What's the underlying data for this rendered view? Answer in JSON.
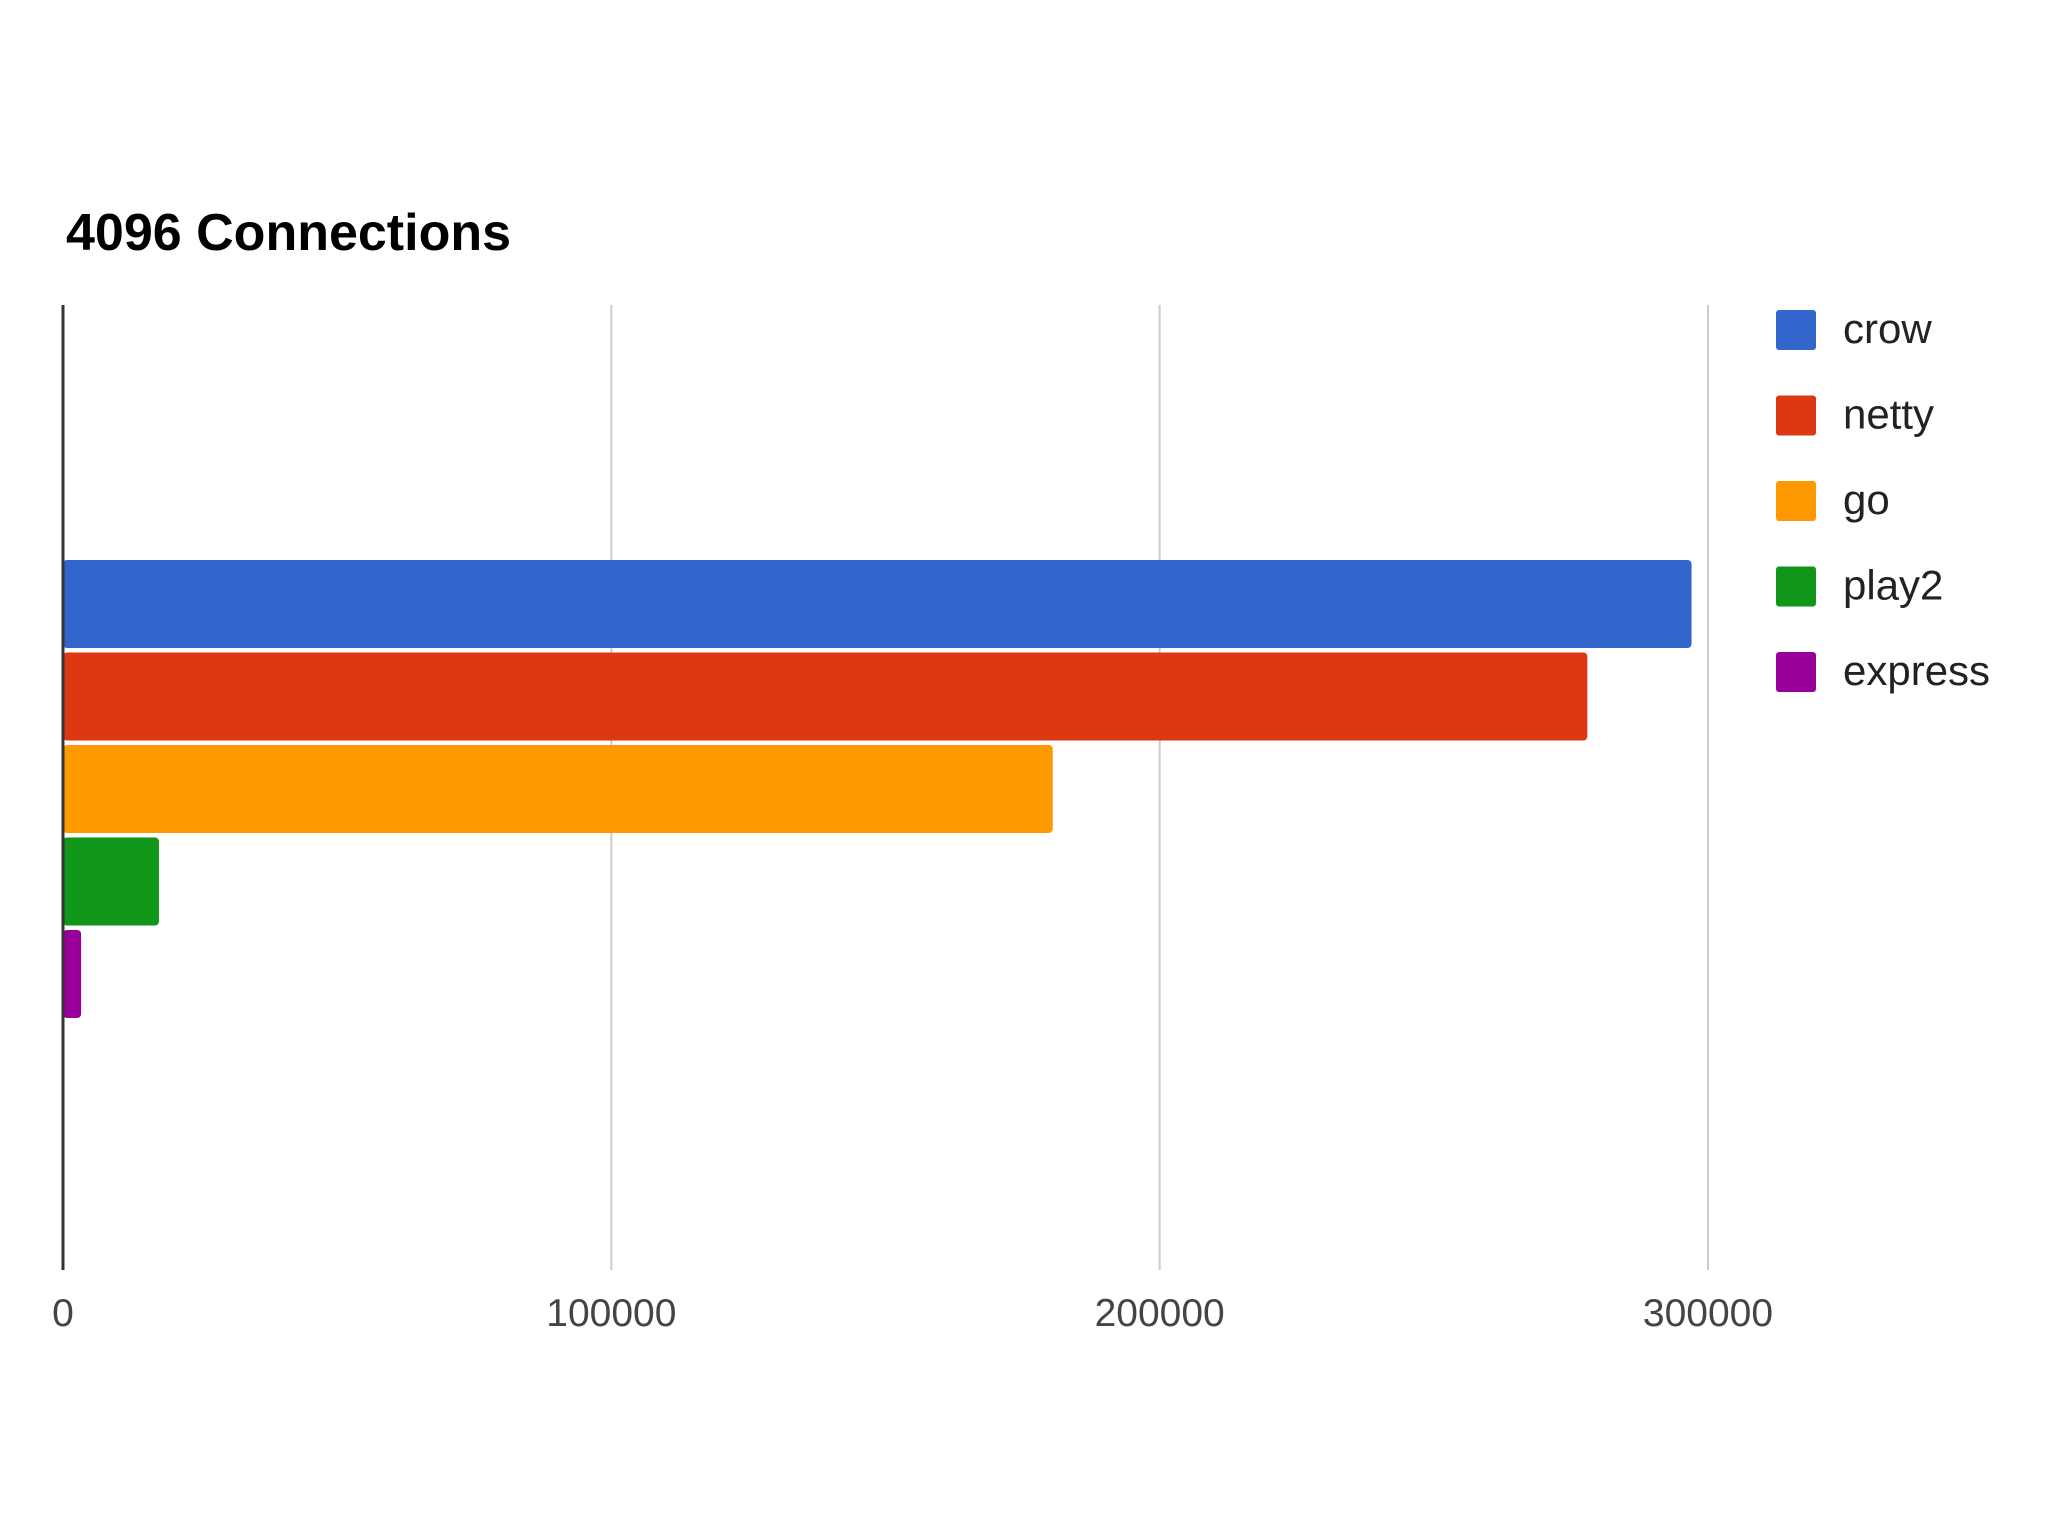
{
  "chart_data": {
    "type": "bar",
    "orientation": "horizontal",
    "title": "4096 Connections",
    "xlabel": "",
    "ylabel": "",
    "xlim": [
      0,
      310000
    ],
    "x_ticks": [
      0,
      100000,
      200000,
      300000
    ],
    "x_tick_labels": [
      "0",
      "100000",
      "200000",
      "300000"
    ],
    "grid": true,
    "legend_position": "right",
    "series": [
      {
        "name": "crow",
        "value": 297000,
        "color": "#3366cc"
      },
      {
        "name": "netty",
        "value": 278000,
        "color": "#dc3912"
      },
      {
        "name": "go",
        "value": 180500,
        "color": "#ff9900"
      },
      {
        "name": "play2",
        "value": 17500,
        "color": "#109618"
      },
      {
        "name": "express",
        "value": 3300,
        "color": "#990099"
      }
    ]
  }
}
